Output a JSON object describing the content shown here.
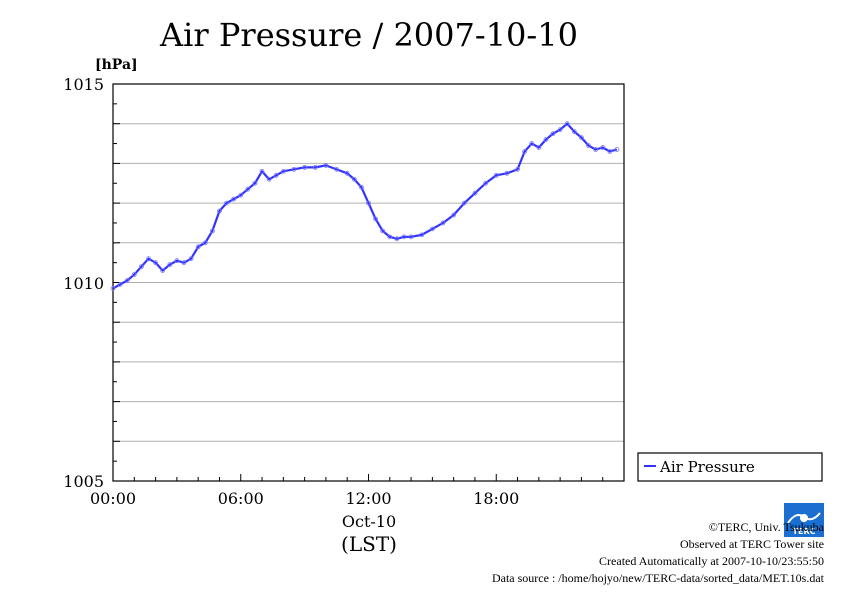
{
  "chart_data": {
    "type": "line",
    "title": "Air Pressure / 2007-10-10",
    "ylabel": "[hPa]",
    "xlabel": "(LST)",
    "date_label": "Oct-10",
    "ylim": [
      1005,
      1015
    ],
    "xlim": [
      "2007-10-10 00:00",
      "2007-10-11 00:00"
    ],
    "y_ticks": [
      "1005",
      "1010",
      "1015"
    ],
    "x_ticks": [
      "00:00",
      "06:00",
      "12:00",
      "18:00"
    ],
    "grid": true,
    "legend_position": "right",
    "series": [
      {
        "name": "Air Pressure",
        "color": "#3333ff",
        "points": [
          [
            "00:00",
            1009.85
          ],
          [
            "00:20",
            1009.95
          ],
          [
            "00:40",
            1010.05
          ],
          [
            "01:00",
            1010.2
          ],
          [
            "01:20",
            1010.4
          ],
          [
            "01:40",
            1010.6
          ],
          [
            "02:00",
            1010.5
          ],
          [
            "02:20",
            1010.3
          ],
          [
            "02:40",
            1010.45
          ],
          [
            "03:00",
            1010.55
          ],
          [
            "03:20",
            1010.5
          ],
          [
            "03:40",
            1010.6
          ],
          [
            "04:00",
            1010.9
          ],
          [
            "04:20",
            1011.0
          ],
          [
            "04:40",
            1011.3
          ],
          [
            "05:00",
            1011.8
          ],
          [
            "05:20",
            1012.0
          ],
          [
            "05:40",
            1012.1
          ],
          [
            "06:00",
            1012.2
          ],
          [
            "06:20",
            1012.35
          ],
          [
            "06:40",
            1012.5
          ],
          [
            "07:00",
            1012.8
          ],
          [
            "07:20",
            1012.6
          ],
          [
            "07:40",
            1012.7
          ],
          [
            "08:00",
            1012.8
          ],
          [
            "08:30",
            1012.85
          ],
          [
            "09:00",
            1012.9
          ],
          [
            "09:30",
            1012.9
          ],
          [
            "10:00",
            1012.95
          ],
          [
            "10:30",
            1012.85
          ],
          [
            "11:00",
            1012.75
          ],
          [
            "11:20",
            1012.6
          ],
          [
            "11:40",
            1012.4
          ],
          [
            "12:00",
            1012.0
          ],
          [
            "12:20",
            1011.6
          ],
          [
            "12:40",
            1011.3
          ],
          [
            "13:00",
            1011.15
          ],
          [
            "13:20",
            1011.1
          ],
          [
            "13:40",
            1011.15
          ],
          [
            "14:00",
            1011.15
          ],
          [
            "14:30",
            1011.2
          ],
          [
            "15:00",
            1011.35
          ],
          [
            "15:30",
            1011.5
          ],
          [
            "16:00",
            1011.7
          ],
          [
            "16:30",
            1012.0
          ],
          [
            "17:00",
            1012.25
          ],
          [
            "17:30",
            1012.5
          ],
          [
            "18:00",
            1012.7
          ],
          [
            "18:30",
            1012.75
          ],
          [
            "19:00",
            1012.85
          ],
          [
            "19:20",
            1013.3
          ],
          [
            "19:40",
            1013.5
          ],
          [
            "20:00",
            1013.4
          ],
          [
            "20:20",
            1013.6
          ],
          [
            "20:40",
            1013.75
          ],
          [
            "21:00",
            1013.85
          ],
          [
            "21:20",
            1014.0
          ],
          [
            "21:40",
            1013.8
          ],
          [
            "22:00",
            1013.65
          ],
          [
            "22:20",
            1013.45
          ],
          [
            "22:40",
            1013.35
          ],
          [
            "23:00",
            1013.4
          ],
          [
            "23:20",
            1013.3
          ],
          [
            "23:40",
            1013.35
          ]
        ]
      }
    ]
  },
  "credits": {
    "copyright": "©TERC, Univ. Tsukuba",
    "observed": "Observed at TERC Tower site",
    "created": "Created Automatically at 2007-10-10/23:55:50",
    "source": "Data source : /home/hojyo/new/TERC-data/sorted_data/MET.10s.dat"
  },
  "logo": {
    "text": "TERC",
    "color": "#1a6fd0"
  }
}
